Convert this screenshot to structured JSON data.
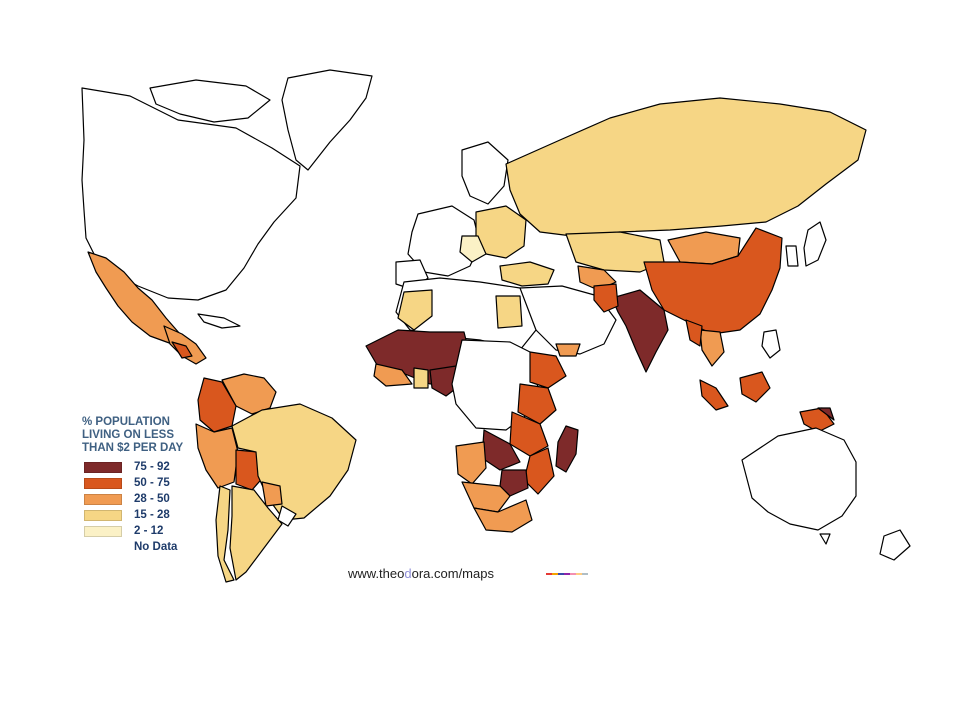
{
  "colors": {
    "c75_92": "#7e2a2a",
    "c50_75": "#d9571e",
    "c28_50": "#f09b52",
    "c15_28": "#f6d685",
    "c2_12": "#fbf1c6",
    "no_data": "#ffffff"
  },
  "legend": {
    "title_line1": "% POPULATION",
    "title_line2": "LIVING ON LESS",
    "title_line3": "THAN $2 PER DAY",
    "items": [
      {
        "label": "75 - 92",
        "color": "#7e2a2a"
      },
      {
        "label": "50 - 75",
        "color": "#d9571e"
      },
      {
        "label": "28 - 50",
        "color": "#f09b52"
      },
      {
        "label": "15 - 28",
        "color": "#f6d685"
      },
      {
        "label": "2 - 12",
        "color": "#fbf1c6"
      },
      {
        "label": "No Data",
        "color": ""
      }
    ]
  },
  "source": {
    "prefix": "www.theo",
    "accent": "d",
    "suffix": "ora.com/maps"
  },
  "colorbar": [
    "#e53935",
    "#f4a300",
    "#3949ab",
    "#8e24aa",
    "#f48fb1",
    "#ffcc80",
    "#b0bec5"
  ]
}
